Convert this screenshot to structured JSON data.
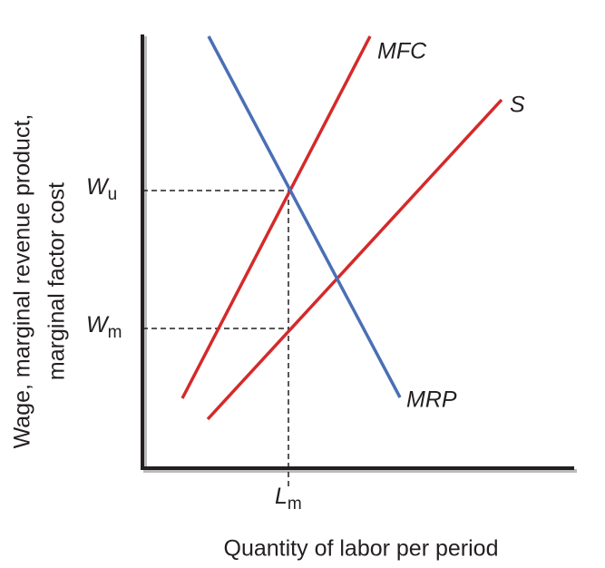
{
  "y_axis_label": [
    "Wage, marginal revenue product,",
    "marginal factor cost"
  ],
  "x_axis_label": "Quantity of labor per period",
  "curves": [
    {
      "label": "MFC"
    },
    {
      "label": "S"
    },
    {
      "label": "MRP"
    }
  ],
  "wage_marks": [
    {
      "symbol": "W",
      "subscript": "u"
    },
    {
      "symbol": "W",
      "subscript": "m"
    }
  ],
  "quantity_mark": {
    "symbol": "L",
    "subscript": "m"
  }
}
